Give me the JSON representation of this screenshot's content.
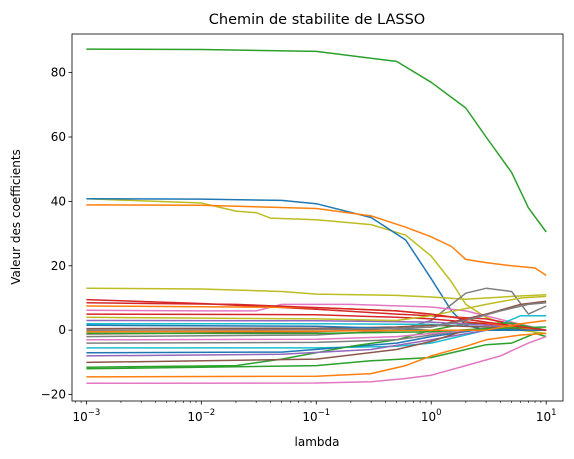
{
  "chart_data": {
    "type": "line",
    "title": "Chemin de stabilite de LASSO",
    "xlabel": "lambda",
    "ylabel": "Valeur des coefficients",
    "xscale": "log",
    "xlim": [
      0.00075,
      14
    ],
    "ylim": [
      -22,
      92
    ],
    "x_ticks": [
      {
        "value": 0.001,
        "base": "10",
        "exp": "−3"
      },
      {
        "value": 0.01,
        "base": "10",
        "exp": "−2"
      },
      {
        "value": 0.1,
        "base": "10",
        "exp": "−1"
      },
      {
        "value": 1,
        "base": "10",
        "exp": "0"
      },
      {
        "value": 10,
        "base": "10",
        "exp": "1"
      }
    ],
    "y_ticks": [
      {
        "value": -20,
        "label": "−20"
      },
      {
        "value": 0,
        "label": "0"
      },
      {
        "value": 20,
        "label": "20"
      },
      {
        "value": 40,
        "label": "40"
      },
      {
        "value": 60,
        "label": "60"
      },
      {
        "value": 80,
        "label": "80"
      }
    ],
    "grid": false,
    "legend": "none",
    "series": [
      {
        "color": "#2ca02c",
        "points": [
          [
            0.001,
            87.3
          ],
          [
            0.01,
            87.2
          ],
          [
            0.1,
            86.6
          ],
          [
            0.5,
            83.5
          ],
          [
            1,
            77
          ],
          [
            2,
            69
          ],
          [
            3,
            60
          ],
          [
            5,
            49
          ],
          [
            7,
            38
          ],
          [
            10,
            30.5
          ]
        ]
      },
      {
        "color": "#bcbd22",
        "points": [
          [
            0.001,
            40.8
          ],
          [
            0.01,
            39.5
          ],
          [
            0.02,
            37
          ],
          [
            0.03,
            36.5
          ],
          [
            0.04,
            34.8
          ],
          [
            0.1,
            34.3
          ],
          [
            0.3,
            32.8
          ],
          [
            0.6,
            29.5
          ],
          [
            1,
            23
          ],
          [
            1.5,
            15
          ],
          [
            2,
            8
          ],
          [
            3,
            4
          ],
          [
            6,
            0
          ],
          [
            10,
            -1
          ]
        ]
      },
      {
        "color": "#1f77b4",
        "points": [
          [
            0.001,
            40.8
          ],
          [
            0.01,
            40.7
          ],
          [
            0.05,
            40.3
          ],
          [
            0.1,
            39.3
          ],
          [
            0.3,
            35
          ],
          [
            0.6,
            28
          ],
          [
            1,
            16
          ],
          [
            1.5,
            6
          ],
          [
            2,
            1.5
          ],
          [
            3,
            0
          ],
          [
            10,
            0
          ]
        ]
      },
      {
        "color": "#ff7f0e",
        "points": [
          [
            0.001,
            38.9
          ],
          [
            0.01,
            38.8
          ],
          [
            0.1,
            37.8
          ],
          [
            0.3,
            35.5
          ],
          [
            0.6,
            32
          ],
          [
            1,
            29
          ],
          [
            1.5,
            26
          ],
          [
            2,
            22
          ],
          [
            3,
            21
          ],
          [
            5,
            20
          ],
          [
            8,
            19.3
          ],
          [
            10,
            17
          ]
        ]
      },
      {
        "color": "#bcbd22",
        "points": [
          [
            0.001,
            13
          ],
          [
            0.01,
            12.8
          ],
          [
            0.05,
            12
          ],
          [
            0.1,
            11.2
          ],
          [
            0.5,
            10.8
          ],
          [
            1,
            10.3
          ],
          [
            2,
            9.6
          ],
          [
            5,
            10.5
          ],
          [
            10,
            11
          ]
        ]
      },
      {
        "color": "#7f7f7f",
        "points": [
          [
            0.001,
            -2
          ],
          [
            0.1,
            -1.5
          ],
          [
            0.5,
            0
          ],
          [
            1,
            3
          ],
          [
            1.5,
            8
          ],
          [
            2,
            11.5
          ],
          [
            3,
            13
          ],
          [
            5,
            12
          ],
          [
            7,
            5
          ],
          [
            10,
            7.5
          ]
        ]
      },
      {
        "color": "#d62728",
        "points": [
          [
            0.001,
            9.5
          ],
          [
            0.01,
            8.3
          ],
          [
            0.1,
            6.5
          ],
          [
            0.5,
            5
          ],
          [
            1,
            4.5
          ],
          [
            3,
            3.5
          ],
          [
            6,
            1.5
          ],
          [
            10,
            0
          ]
        ]
      },
      {
        "color": "#e377c2",
        "points": [
          [
            0.001,
            6.2
          ],
          [
            0.01,
            6
          ],
          [
            0.03,
            6
          ],
          [
            0.05,
            8
          ],
          [
            0.2,
            8
          ],
          [
            1,
            7.2
          ],
          [
            2,
            6
          ],
          [
            5,
            2.5
          ],
          [
            10,
            0
          ]
        ]
      },
      {
        "color": "#8c564b",
        "points": [
          [
            0.001,
            -1.2
          ],
          [
            0.1,
            -0.5
          ],
          [
            1,
            1
          ],
          [
            3,
            5
          ],
          [
            6,
            8
          ],
          [
            10,
            9
          ]
        ]
      },
      {
        "color": "#17becf",
        "points": [
          [
            0.001,
            -5.5
          ],
          [
            0.1,
            -5.5
          ],
          [
            0.5,
            -5
          ],
          [
            1,
            -4
          ],
          [
            3,
            0
          ],
          [
            6,
            4.5
          ],
          [
            10,
            4.5
          ]
        ]
      },
      {
        "color": "#1f77b4",
        "points": [
          [
            0.001,
            -7
          ],
          [
            0.05,
            -6.8
          ],
          [
            0.5,
            -4
          ],
          [
            1,
            -2
          ],
          [
            3,
            0.5
          ],
          [
            10,
            0
          ]
        ]
      },
      {
        "color": "#2ca02c",
        "points": [
          [
            0.001,
            -11.5
          ],
          [
            0.02,
            -11
          ],
          [
            0.05,
            -9
          ],
          [
            0.2,
            -5
          ],
          [
            0.5,
            -3
          ],
          [
            1,
            0
          ],
          [
            2,
            2
          ],
          [
            5,
            2.2
          ],
          [
            10,
            0
          ]
        ]
      },
      {
        "color": "#2ca02c",
        "points": [
          [
            0.001,
            -12
          ],
          [
            0.1,
            -11
          ],
          [
            0.3,
            -9.5
          ],
          [
            1,
            -8.5
          ],
          [
            2,
            -6
          ],
          [
            3,
            -4.5
          ],
          [
            5,
            -4
          ],
          [
            8,
            -1
          ],
          [
            10,
            -2
          ]
        ]
      },
      {
        "color": "#ff7f0e",
        "points": [
          [
            0.001,
            -14.5
          ],
          [
            0.1,
            -14.3
          ],
          [
            0.3,
            -13.5
          ],
          [
            0.6,
            -11
          ],
          [
            1,
            -8
          ],
          [
            2,
            -5
          ],
          [
            3,
            -3
          ],
          [
            6,
            -1.5
          ],
          [
            10,
            -1
          ]
        ]
      },
      {
        "color": "#e377c2",
        "points": [
          [
            0.001,
            -16.5
          ],
          [
            0.1,
            -16.4
          ],
          [
            0.3,
            -16
          ],
          [
            0.6,
            -15
          ],
          [
            1,
            -14
          ],
          [
            2,
            -11
          ],
          [
            4,
            -8
          ],
          [
            7,
            -4
          ],
          [
            10,
            -2
          ]
        ]
      },
      {
        "color": "#9467bd",
        "points": [
          [
            0.001,
            -8
          ],
          [
            0.05,
            -7.5
          ],
          [
            0.3,
            -6
          ],
          [
            1,
            -3
          ],
          [
            3,
            0
          ],
          [
            10,
            0
          ]
        ]
      },
      {
        "color": "#8c564b",
        "points": [
          [
            0.001,
            -10
          ],
          [
            0.1,
            -9
          ],
          [
            0.5,
            -6
          ],
          [
            1,
            -3.5
          ],
          [
            2,
            0
          ],
          [
            10,
            0
          ]
        ]
      },
      {
        "color": "#7f7f7f",
        "points": [
          [
            0.001,
            -4
          ],
          [
            0.1,
            -3.8
          ],
          [
            0.5,
            -3
          ],
          [
            2,
            0
          ],
          [
            10,
            0
          ]
        ]
      },
      {
        "color": "#d62728",
        "points": [
          [
            0.001,
            5
          ],
          [
            0.1,
            4.8
          ],
          [
            0.5,
            4
          ],
          [
            1,
            3.5
          ],
          [
            3,
            2
          ],
          [
            10,
            0
          ]
        ]
      },
      {
        "color": "#9467bd",
        "points": [
          [
            0.001,
            3
          ],
          [
            0.1,
            2.9
          ],
          [
            1,
            2.5
          ],
          [
            3,
            1.5
          ],
          [
            10,
            0
          ]
        ]
      },
      {
        "color": "#17becf",
        "points": [
          [
            0.001,
            2
          ],
          [
            0.1,
            2
          ],
          [
            1,
            1.8
          ],
          [
            3,
            1
          ],
          [
            10,
            0
          ]
        ]
      },
      {
        "color": "#bcbd22",
        "points": [
          [
            0.001,
            4
          ],
          [
            0.1,
            3.5
          ],
          [
            0.5,
            3
          ],
          [
            1,
            4.5
          ],
          [
            3,
            8
          ],
          [
            6,
            10
          ],
          [
            10,
            10.5
          ]
        ]
      },
      {
        "color": "#8c564b",
        "points": [
          [
            0.001,
            0.5
          ],
          [
            0.1,
            0.6
          ],
          [
            0.5,
            1
          ],
          [
            1,
            1.5
          ],
          [
            3,
            1
          ],
          [
            10,
            0
          ]
        ]
      },
      {
        "color": "#e377c2",
        "points": [
          [
            0.001,
            -3
          ],
          [
            0.1,
            -2.8
          ],
          [
            0.5,
            -2
          ],
          [
            1,
            -1
          ],
          [
            2,
            0
          ],
          [
            10,
            0
          ]
        ]
      },
      {
        "color": "#ff7f0e",
        "points": [
          [
            0.001,
            7.5
          ],
          [
            0.1,
            7
          ],
          [
            0.5,
            6
          ],
          [
            1,
            5
          ],
          [
            2,
            3.5
          ],
          [
            5,
            1
          ],
          [
            10,
            0
          ]
        ]
      },
      {
        "color": "#1f77b4",
        "points": [
          [
            0.001,
            1.5
          ],
          [
            0.1,
            1.2
          ],
          [
            0.5,
            0.5
          ],
          [
            1,
            0
          ],
          [
            10,
            0
          ]
        ]
      },
      {
        "color": "#2ca02c",
        "points": [
          [
            0.001,
            -1
          ],
          [
            0.1,
            -1
          ],
          [
            1,
            -0.5
          ],
          [
            3,
            0.5
          ],
          [
            10,
            1
          ]
        ]
      },
      {
        "color": "#d62728",
        "points": [
          [
            0.001,
            8.5
          ],
          [
            0.02,
            8
          ],
          [
            0.1,
            7
          ],
          [
            0.5,
            6
          ],
          [
            1,
            5
          ],
          [
            3,
            2.5
          ],
          [
            10,
            0
          ]
        ]
      },
      {
        "color": "#7f7f7f",
        "points": [
          [
            0.001,
            0
          ],
          [
            0.1,
            0.2
          ],
          [
            0.5,
            0.5
          ],
          [
            1,
            1
          ],
          [
            2,
            3
          ],
          [
            4,
            6
          ],
          [
            7,
            8
          ],
          [
            10,
            8.5
          ]
        ]
      },
      {
        "color": "#ff7f0e",
        "points": [
          [
            0.001,
            -0.5
          ],
          [
            0.1,
            -0.3
          ],
          [
            1,
            0
          ],
          [
            3,
            0
          ],
          [
            6,
            2
          ],
          [
            10,
            3
          ]
        ]
      }
    ]
  }
}
